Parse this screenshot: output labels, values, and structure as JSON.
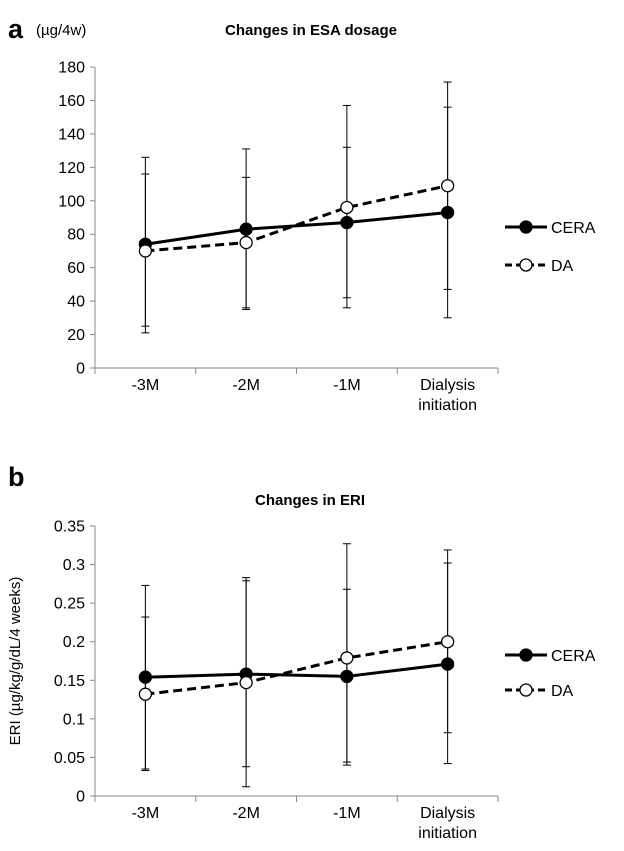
{
  "chart_data": [
    {
      "panel": "a",
      "type": "line",
      "title": "Changes in ESA dosage",
      "unit_label": "(µg/4w)",
      "ylabel": "",
      "xlabel": "",
      "ylim": [
        0,
        180
      ],
      "yticks": [
        "0",
        "20",
        "40",
        "60",
        "80",
        "100",
        "120",
        "140",
        "160",
        "180"
      ],
      "ytick_values": [
        0,
        20,
        40,
        60,
        80,
        100,
        120,
        140,
        160,
        180
      ],
      "categories": [
        [
          "-3M"
        ],
        [
          "-2M"
        ],
        [
          "-1M"
        ],
        [
          "Dialysis",
          "initiation"
        ]
      ],
      "grid": false,
      "legend_position": "right",
      "series": [
        {
          "name": "CERA",
          "style": "solid",
          "marker": "filled-circle",
          "color": "#000000",
          "values": [
            74,
            83,
            87,
            93
          ],
          "error_low": [
            25,
            35,
            42,
            47
          ],
          "error_high": [
            116,
            114,
            132,
            156
          ]
        },
        {
          "name": "DA",
          "style": "dashed",
          "marker": "open-circle",
          "color": "#000000",
          "values": [
            70,
            75,
            96,
            109
          ],
          "error_low": [
            21,
            36,
            36,
            30
          ],
          "error_high": [
            126,
            131,
            157,
            171
          ]
        }
      ]
    },
    {
      "panel": "b",
      "type": "line",
      "title": "Changes in ERI",
      "unit_label": "",
      "ylabel": "ERI (µg/kg/g/dL/4 weeks)",
      "xlabel": "",
      "ylim": [
        0,
        0.35
      ],
      "yticks": [
        "0",
        "0.05",
        "0.1",
        "0.15",
        "0.2",
        "0.25",
        "0.3",
        "0.35"
      ],
      "ytick_values": [
        0,
        0.05,
        0.1,
        0.15,
        0.2,
        0.25,
        0.3,
        0.35
      ],
      "categories": [
        [
          "-3M"
        ],
        [
          "-2M"
        ],
        [
          "-1M"
        ],
        [
          "Dialysis",
          "initiation"
        ]
      ],
      "grid": false,
      "legend_position": "right",
      "series": [
        {
          "name": "CERA",
          "style": "solid",
          "marker": "filled-circle",
          "color": "#000000",
          "values": [
            0.154,
            0.158,
            0.155,
            0.171
          ],
          "error_low": [
            0.035,
            0.038,
            0.044,
            0.082
          ],
          "error_high": [
            0.273,
            0.279,
            0.268,
            0.302
          ]
        },
        {
          "name": "DA",
          "style": "dashed",
          "marker": "open-circle",
          "color": "#000000",
          "values": [
            0.132,
            0.147,
            0.179,
            0.2
          ],
          "error_low": [
            0.033,
            0.012,
            0.04,
            0.042
          ],
          "error_high": [
            0.232,
            0.283,
            0.327,
            0.319
          ]
        }
      ]
    }
  ]
}
